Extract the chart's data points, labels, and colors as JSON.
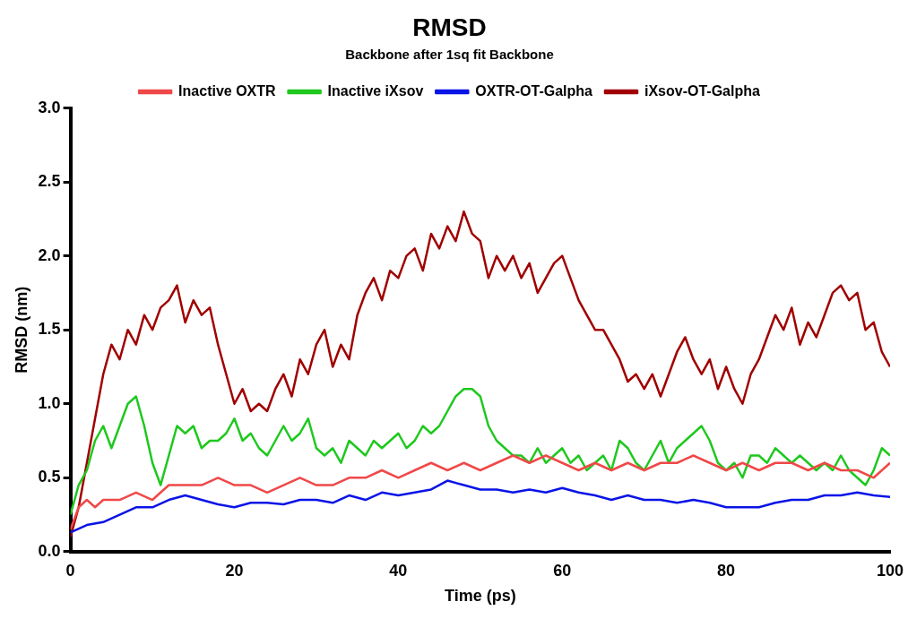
{
  "chart_data": {
    "type": "line",
    "title": "RMSD",
    "subtitle": "Backbone after 1sq fit Backbone",
    "xlabel": "Time (ps)",
    "ylabel": "RMSD (nm)",
    "xlim": [
      0,
      100
    ],
    "ylim": [
      0,
      3
    ],
    "xticks": [
      0,
      20,
      40,
      60,
      80,
      100
    ],
    "yticks": [
      {
        "value": 0,
        "label": "0.0"
      },
      0.5,
      {
        "value": 1,
        "label": "1.0"
      },
      1.5,
      {
        "value": 2,
        "label": "2.0"
      },
      2.5,
      {
        "value": 3,
        "label": "3.0"
      }
    ],
    "grid": false,
    "legend": "top",
    "series": [
      {
        "name": "Inactive OXTR",
        "color": "#f04848",
        "x": [
          0,
          1,
          2,
          3,
          4,
          6,
          8,
          10,
          12,
          14,
          16,
          18,
          20,
          22,
          24,
          26,
          28,
          30,
          32,
          34,
          36,
          38,
          40,
          42,
          44,
          46,
          48,
          50,
          52,
          54,
          56,
          58,
          60,
          62,
          64,
          66,
          68,
          70,
          72,
          74,
          76,
          78,
          80,
          82,
          84,
          86,
          88,
          90,
          92,
          94,
          96,
          98,
          100
        ],
        "values": [
          0.15,
          0.3,
          0.35,
          0.3,
          0.35,
          0.35,
          0.4,
          0.35,
          0.45,
          0.45,
          0.45,
          0.5,
          0.45,
          0.45,
          0.4,
          0.45,
          0.5,
          0.45,
          0.45,
          0.5,
          0.5,
          0.55,
          0.5,
          0.55,
          0.6,
          0.55,
          0.6,
          0.55,
          0.6,
          0.65,
          0.6,
          0.65,
          0.6,
          0.55,
          0.6,
          0.55,
          0.6,
          0.55,
          0.6,
          0.6,
          0.65,
          0.6,
          0.55,
          0.6,
          0.55,
          0.6,
          0.6,
          0.55,
          0.6,
          0.55,
          0.55,
          0.5,
          0.6
        ]
      },
      {
        "name": "Inactive iXsov",
        "color": "#1ec81e",
        "x": [
          0,
          1,
          2,
          3,
          4,
          5,
          6,
          7,
          8,
          9,
          10,
          11,
          12,
          13,
          14,
          15,
          16,
          17,
          18,
          19,
          20,
          21,
          22,
          23,
          24,
          25,
          26,
          27,
          28,
          29,
          30,
          31,
          32,
          33,
          34,
          35,
          36,
          37,
          38,
          39,
          40,
          41,
          42,
          43,
          44,
          45,
          46,
          47,
          48,
          49,
          50,
          51,
          52,
          53,
          54,
          55,
          56,
          57,
          58,
          59,
          60,
          61,
          62,
          63,
          64,
          65,
          66,
          67,
          68,
          69,
          70,
          71,
          72,
          73,
          74,
          75,
          76,
          77,
          78,
          79,
          80,
          81,
          82,
          83,
          84,
          85,
          86,
          87,
          88,
          89,
          90,
          91,
          92,
          93,
          94,
          95,
          96,
          97,
          98,
          99,
          100
        ],
        "values": [
          0.25,
          0.45,
          0.55,
          0.75,
          0.85,
          0.7,
          0.85,
          1.0,
          1.05,
          0.85,
          0.6,
          0.45,
          0.65,
          0.85,
          0.8,
          0.85,
          0.7,
          0.75,
          0.75,
          0.8,
          0.9,
          0.75,
          0.8,
          0.7,
          0.65,
          0.75,
          0.85,
          0.75,
          0.8,
          0.9,
          0.7,
          0.65,
          0.7,
          0.6,
          0.75,
          0.7,
          0.65,
          0.75,
          0.7,
          0.75,
          0.8,
          0.7,
          0.75,
          0.85,
          0.8,
          0.85,
          0.95,
          1.05,
          1.1,
          1.1,
          1.05,
          0.85,
          0.75,
          0.7,
          0.65,
          0.65,
          0.6,
          0.7,
          0.6,
          0.65,
          0.7,
          0.6,
          0.65,
          0.55,
          0.6,
          0.65,
          0.55,
          0.75,
          0.7,
          0.6,
          0.55,
          0.65,
          0.75,
          0.6,
          0.7,
          0.75,
          0.8,
          0.85,
          0.75,
          0.6,
          0.55,
          0.6,
          0.5,
          0.65,
          0.65,
          0.6,
          0.7,
          0.65,
          0.6,
          0.65,
          0.6,
          0.55,
          0.6,
          0.55,
          0.65,
          0.55,
          0.5,
          0.45,
          0.55,
          0.7,
          0.65
        ]
      },
      {
        "name": "OXTR-OT-Galpha",
        "color": "#0a14e6",
        "x": [
          0,
          2,
          4,
          6,
          8,
          10,
          12,
          14,
          16,
          18,
          20,
          22,
          24,
          26,
          28,
          30,
          32,
          34,
          36,
          38,
          40,
          42,
          44,
          46,
          48,
          50,
          52,
          54,
          56,
          58,
          60,
          62,
          64,
          66,
          68,
          70,
          72,
          74,
          76,
          78,
          80,
          82,
          84,
          86,
          88,
          90,
          92,
          94,
          96,
          98,
          100
        ],
        "values": [
          0.13,
          0.18,
          0.2,
          0.25,
          0.3,
          0.3,
          0.35,
          0.38,
          0.35,
          0.32,
          0.3,
          0.33,
          0.33,
          0.32,
          0.35,
          0.35,
          0.33,
          0.38,
          0.35,
          0.4,
          0.38,
          0.4,
          0.42,
          0.48,
          0.45,
          0.42,
          0.42,
          0.4,
          0.42,
          0.4,
          0.43,
          0.4,
          0.38,
          0.35,
          0.38,
          0.35,
          0.35,
          0.33,
          0.35,
          0.33,
          0.3,
          0.3,
          0.3,
          0.33,
          0.35,
          0.35,
          0.38,
          0.38,
          0.4,
          0.38,
          0.37
        ]
      },
      {
        "name": "iXsov-OT-Galpha",
        "color": "#a00000",
        "x": [
          0,
          1,
          2,
          3,
          4,
          5,
          6,
          7,
          8,
          9,
          10,
          11,
          12,
          13,
          14,
          15,
          16,
          17,
          18,
          19,
          20,
          21,
          22,
          23,
          24,
          25,
          26,
          27,
          28,
          29,
          30,
          31,
          32,
          33,
          34,
          35,
          36,
          37,
          38,
          39,
          40,
          41,
          42,
          43,
          44,
          45,
          46,
          47,
          48,
          49,
          50,
          51,
          52,
          53,
          54,
          55,
          56,
          57,
          58,
          59,
          60,
          61,
          62,
          63,
          64,
          65,
          66,
          67,
          68,
          69,
          70,
          71,
          72,
          73,
          74,
          75,
          76,
          77,
          78,
          79,
          80,
          81,
          82,
          83,
          84,
          85,
          86,
          87,
          88,
          89,
          90,
          91,
          92,
          93,
          94,
          95,
          96,
          97,
          98,
          99,
          100
        ],
        "values": [
          0.1,
          0.3,
          0.6,
          0.9,
          1.2,
          1.4,
          1.3,
          1.5,
          1.4,
          1.6,
          1.5,
          1.65,
          1.7,
          1.8,
          1.55,
          1.7,
          1.6,
          1.65,
          1.4,
          1.2,
          1.0,
          1.1,
          0.95,
          1.0,
          0.95,
          1.1,
          1.2,
          1.05,
          1.3,
          1.2,
          1.4,
          1.5,
          1.25,
          1.4,
          1.3,
          1.6,
          1.75,
          1.85,
          1.7,
          1.9,
          1.85,
          2.0,
          2.05,
          1.9,
          2.15,
          2.05,
          2.2,
          2.1,
          2.3,
          2.15,
          2.1,
          1.85,
          2.0,
          1.9,
          2.0,
          1.85,
          1.95,
          1.75,
          1.85,
          1.95,
          2.0,
          1.85,
          1.7,
          1.6,
          1.5,
          1.5,
          1.4,
          1.3,
          1.15,
          1.2,
          1.1,
          1.2,
          1.05,
          1.2,
          1.35,
          1.45,
          1.3,
          1.2,
          1.3,
          1.1,
          1.25,
          1.1,
          1.0,
          1.2,
          1.3,
          1.45,
          1.6,
          1.5,
          1.65,
          1.4,
          1.55,
          1.45,
          1.6,
          1.75,
          1.8,
          1.7,
          1.75,
          1.5,
          1.55,
          1.35,
          1.25
        ]
      }
    ]
  }
}
